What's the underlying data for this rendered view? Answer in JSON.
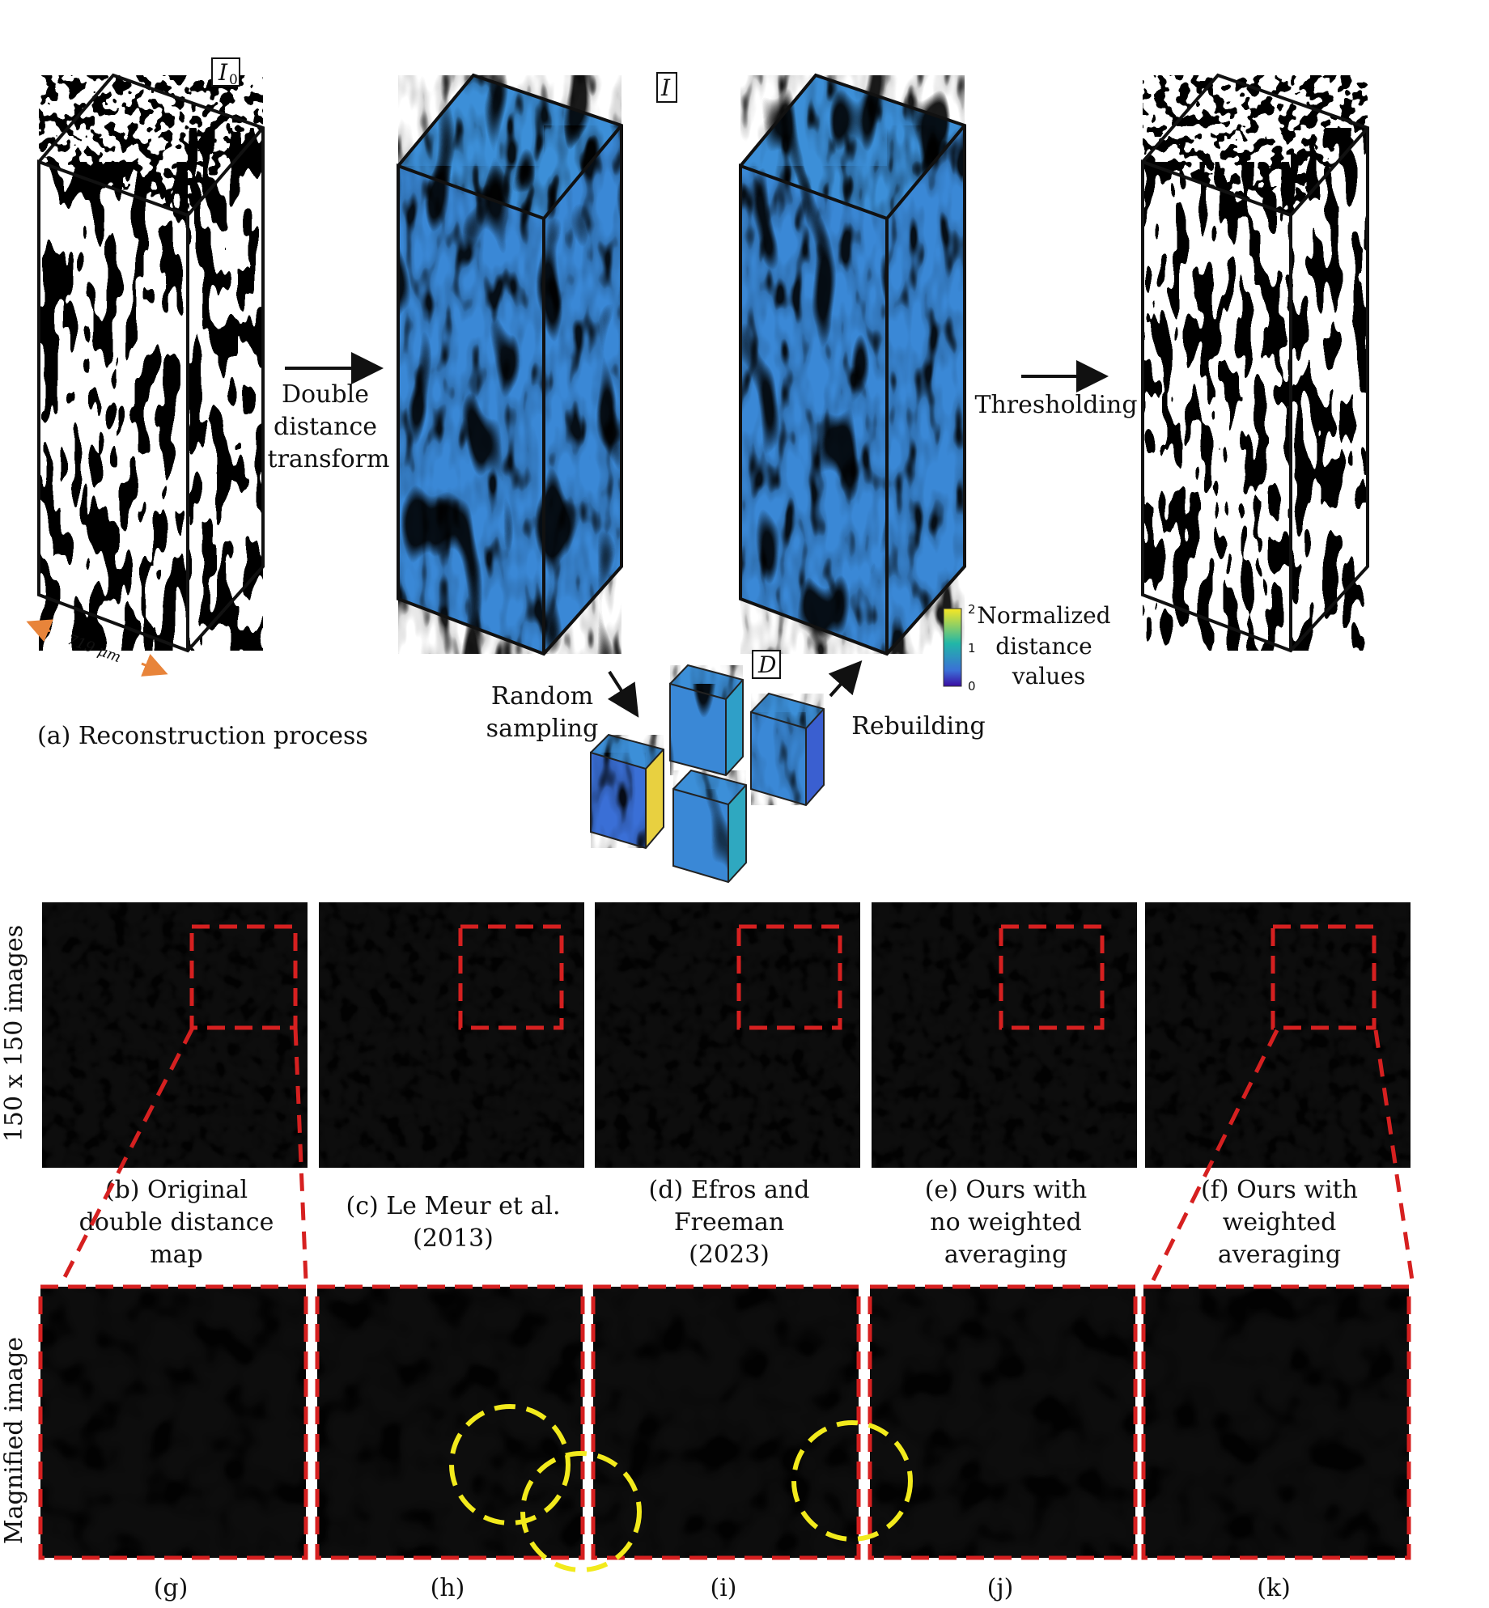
{
  "figure": {
    "top": {
      "label_I0": "I",
      "label_I0_sub": "0",
      "label_I": "I",
      "label_D": "D",
      "arrow1_label": [
        "Double",
        "distance",
        "transform"
      ],
      "arrow2_label": "Thresholding",
      "sampling_label": [
        "Random",
        "sampling"
      ],
      "rebuilding_label": "Rebuilding",
      "scale_label": "719 μm",
      "caption_a": "(a) Reconstruction process",
      "colorbar": {
        "ticks": [
          "2",
          "1",
          "0"
        ],
        "label": [
          "Normalized",
          "distance",
          "values"
        ],
        "colors": [
          "#f9e723",
          "#21b6a8",
          "#3b4cc0",
          "#3a0ca3"
        ]
      },
      "accent_color": "#e8843a"
    },
    "row_label_top": "150 x 150 images",
    "row_label_bottom": "Magnified image",
    "panels": [
      {
        "caption": [
          "(b) Original",
          "double distance",
          "map"
        ]
      },
      {
        "caption": [
          "(c) Le Meur et al.",
          "(2013)"
        ]
      },
      {
        "caption": [
          "(d) Efros and",
          "Freeman",
          "(2023)"
        ]
      },
      {
        "caption": [
          "(e) Ours with",
          "no weighted",
          "averaging"
        ]
      },
      {
        "caption": [
          "(f) Ours with",
          "weighted",
          "averaging"
        ]
      }
    ],
    "bottom_labels": [
      "(g)",
      "(h)",
      "(i)",
      "(j)",
      "(k)"
    ],
    "box_color": "#d62020",
    "circle_color": "#f2ea1c"
  }
}
